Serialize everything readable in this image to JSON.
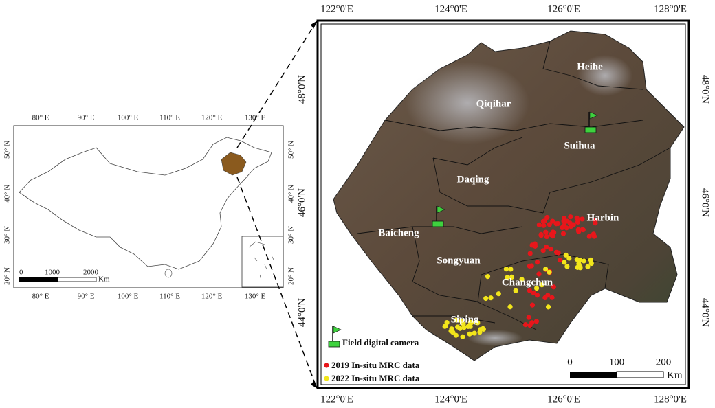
{
  "overview_map": {
    "lon_labels": [
      "80° E",
      "90° E",
      "100° E",
      "110° E",
      "120° E",
      "130° E"
    ],
    "lat_labels": [
      "50° N",
      "40° N",
      "30° N",
      "20° N"
    ],
    "scale_bar": {
      "labels": [
        "0",
        "1000",
        "2000"
      ],
      "unit": "Km"
    }
  },
  "study_area_map": {
    "lon_labels": [
      "122°0'E",
      "124°0'E",
      "126°0'E",
      "128°0'E"
    ],
    "lat_labels": [
      "48°0'N",
      "46°0'N",
      "44°0'N"
    ],
    "regions": [
      "Heihe",
      "Qiqihar",
      "Suihua",
      "Daqing",
      "Harbin",
      "Baicheng",
      "Songyuan",
      "Changchun",
      "Siping"
    ],
    "legend": {
      "camera": "Field digital camera",
      "data_2019": "2019 In-situ MRC data",
      "data_2022": "2022 In-situ MRC data"
    },
    "scale_bar": {
      "labels": [
        "0",
        "100",
        "200"
      ],
      "unit": "Km"
    }
  }
}
